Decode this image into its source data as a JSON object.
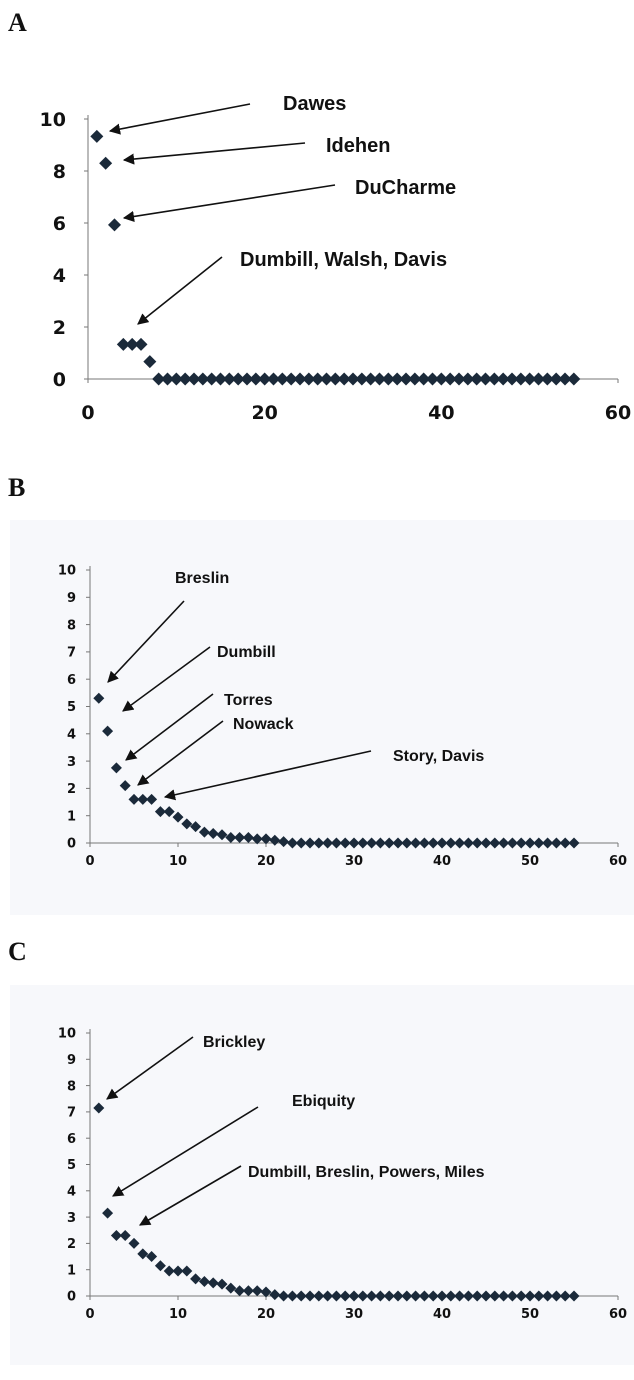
{
  "chart_data": [
    {
      "panel": "A",
      "type": "scatter",
      "marker": "diamond",
      "background": "#ffffff",
      "marker_color": "#1b2a3a",
      "xlim": [
        0,
        60
      ],
      "ylim": [
        0,
        10
      ],
      "xticks": [
        0,
        20,
        40,
        60
      ],
      "yticks": [
        0,
        2,
        4,
        6,
        8,
        10
      ],
      "x": [
        1,
        2,
        3,
        4,
        5,
        6,
        7,
        8,
        9,
        10,
        11,
        12,
        13,
        14,
        15,
        16,
        17,
        18,
        19,
        20,
        21,
        22,
        23,
        24,
        25,
        26,
        27,
        28,
        29,
        30,
        31,
        32,
        33,
        34,
        35,
        36,
        37,
        38,
        39,
        40,
        41,
        42,
        43,
        44,
        45,
        46,
        47,
        48,
        49,
        50,
        51,
        52,
        53,
        54,
        55
      ],
      "y": [
        9.33,
        8.3,
        5.93,
        1.33,
        1.33,
        1.33,
        0.67,
        0,
        0,
        0,
        0,
        0,
        0,
        0,
        0,
        0,
        0,
        0,
        0,
        0,
        0,
        0,
        0,
        0,
        0,
        0,
        0,
        0,
        0,
        0,
        0,
        0,
        0,
        0,
        0,
        0,
        0,
        0,
        0,
        0,
        0,
        0,
        0,
        0,
        0,
        0,
        0,
        0,
        0,
        0,
        0,
        0,
        0,
        0,
        0
      ],
      "annotations": [
        {
          "text": "Dawes",
          "x": 1,
          "y": 9.33
        },
        {
          "text": "Idehen",
          "x": 2,
          "y": 8.3
        },
        {
          "text": "DuCharme",
          "x": 3,
          "y": 5.93
        },
        {
          "text": "Dumbill, Walsh, Davis",
          "x": 5,
          "y": 1.33
        }
      ]
    },
    {
      "panel": "B",
      "type": "scatter",
      "marker": "diamond",
      "background": "#f7f8fb",
      "marker_color": "#1b2a3a",
      "xlim": [
        0,
        60
      ],
      "ylim": [
        0,
        10
      ],
      "xticks": [
        0,
        10,
        20,
        30,
        40,
        50,
        60
      ],
      "yticks": [
        0,
        1,
        2,
        3,
        4,
        5,
        6,
        7,
        8,
        9,
        10
      ],
      "x": [
        1,
        2,
        3,
        4,
        5,
        6,
        7,
        8,
        9,
        10,
        11,
        12,
        13,
        14,
        15,
        16,
        17,
        18,
        19,
        20,
        21,
        22,
        23,
        24,
        25,
        26,
        27,
        28,
        29,
        30,
        31,
        32,
        33,
        34,
        35,
        36,
        37,
        38,
        39,
        40,
        41,
        42,
        43,
        44,
        45,
        46,
        47,
        48,
        49,
        50,
        51,
        52,
        53,
        54,
        55
      ],
      "y": [
        5.3,
        4.1,
        2.75,
        2.1,
        1.6,
        1.6,
        1.6,
        1.15,
        1.15,
        0.95,
        0.7,
        0.6,
        0.4,
        0.35,
        0.3,
        0.2,
        0.2,
        0.2,
        0.15,
        0.15,
        0.1,
        0.05,
        0,
        0,
        0,
        0,
        0,
        0,
        0,
        0,
        0,
        0,
        0,
        0,
        0,
        0,
        0,
        0,
        0,
        0,
        0,
        0,
        0,
        0,
        0,
        0,
        0,
        0,
        0,
        0,
        0,
        0,
        0,
        0,
        0
      ],
      "annotations": [
        {
          "text": "Breslin",
          "x": 1,
          "y": 5.3
        },
        {
          "text": "Dumbill",
          "x": 2,
          "y": 4.1
        },
        {
          "text": "Torres",
          "x": 3,
          "y": 2.75
        },
        {
          "text": "Nowack",
          "x": 4,
          "y": 2.1
        },
        {
          "text": "Story, Davis",
          "x": 8,
          "y": 1.6
        }
      ]
    },
    {
      "panel": "C",
      "type": "scatter",
      "marker": "diamond",
      "background": "#f7f8fb",
      "marker_color": "#1b2a3a",
      "xlim": [
        0,
        60
      ],
      "ylim": [
        0,
        10
      ],
      "xticks": [
        0,
        10,
        20,
        30,
        40,
        50,
        60
      ],
      "yticks": [
        0,
        1,
        2,
        3,
        4,
        5,
        6,
        7,
        8,
        9,
        10
      ],
      "x": [
        1,
        2,
        3,
        4,
        5,
        6,
        7,
        8,
        9,
        10,
        11,
        12,
        13,
        14,
        15,
        16,
        17,
        18,
        19,
        20,
        21,
        22,
        23,
        24,
        25,
        26,
        27,
        28,
        29,
        30,
        31,
        32,
        33,
        34,
        35,
        36,
        37,
        38,
        39,
        40,
        41,
        42,
        43,
        44,
        45,
        46,
        47,
        48,
        49,
        50,
        51,
        52,
        53,
        54,
        55
      ],
      "y": [
        7.15,
        3.15,
        2.3,
        2.3,
        2.0,
        1.6,
        1.5,
        1.15,
        0.95,
        0.95,
        0.95,
        0.65,
        0.55,
        0.5,
        0.45,
        0.3,
        0.2,
        0.2,
        0.2,
        0.15,
        0.05,
        0,
        0,
        0,
        0,
        0,
        0,
        0,
        0,
        0,
        0,
        0,
        0,
        0,
        0,
        0,
        0,
        0,
        0,
        0,
        0,
        0,
        0,
        0,
        0,
        0,
        0,
        0,
        0,
        0,
        0,
        0,
        0,
        0,
        0
      ],
      "annotations": [
        {
          "text": "Brickley",
          "x": 1,
          "y": 7.15
        },
        {
          "text": "Ebiquity",
          "x": 2,
          "y": 3.15
        },
        {
          "text": "Dumbill, Breslin, Powers, Miles",
          "x": 4,
          "y": 2.3
        }
      ]
    }
  ]
}
